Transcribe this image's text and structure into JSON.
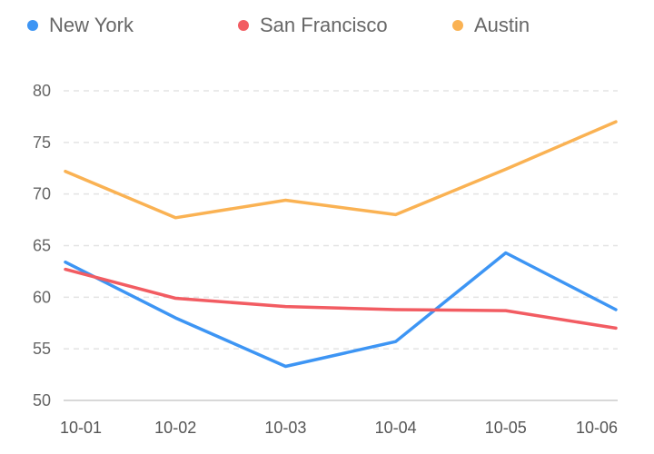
{
  "chart_data": {
    "type": "line",
    "categories": [
      "10-01",
      "10-02",
      "10-03",
      "10-04",
      "10-05",
      "10-06"
    ],
    "series": [
      {
        "name": "New York",
        "color": "#3d95f4",
        "values": [
          63.4,
          58.0,
          53.3,
          55.7,
          64.3,
          58.8
        ]
      },
      {
        "name": "San Francisco",
        "color": "#f25c62",
        "values": [
          62.7,
          59.9,
          59.1,
          58.8,
          58.7,
          57.0
        ]
      },
      {
        "name": "Austin",
        "color": "#fab253",
        "values": [
          72.2,
          67.7,
          69.4,
          68.0,
          72.4,
          77.0
        ]
      }
    ],
    "ylim": [
      50,
      80
    ],
    "yticks": [
      50,
      55,
      60,
      65,
      70,
      75,
      80
    ],
    "grid": true,
    "legend": "top",
    "title": "",
    "xlabel": "",
    "ylabel": ""
  }
}
